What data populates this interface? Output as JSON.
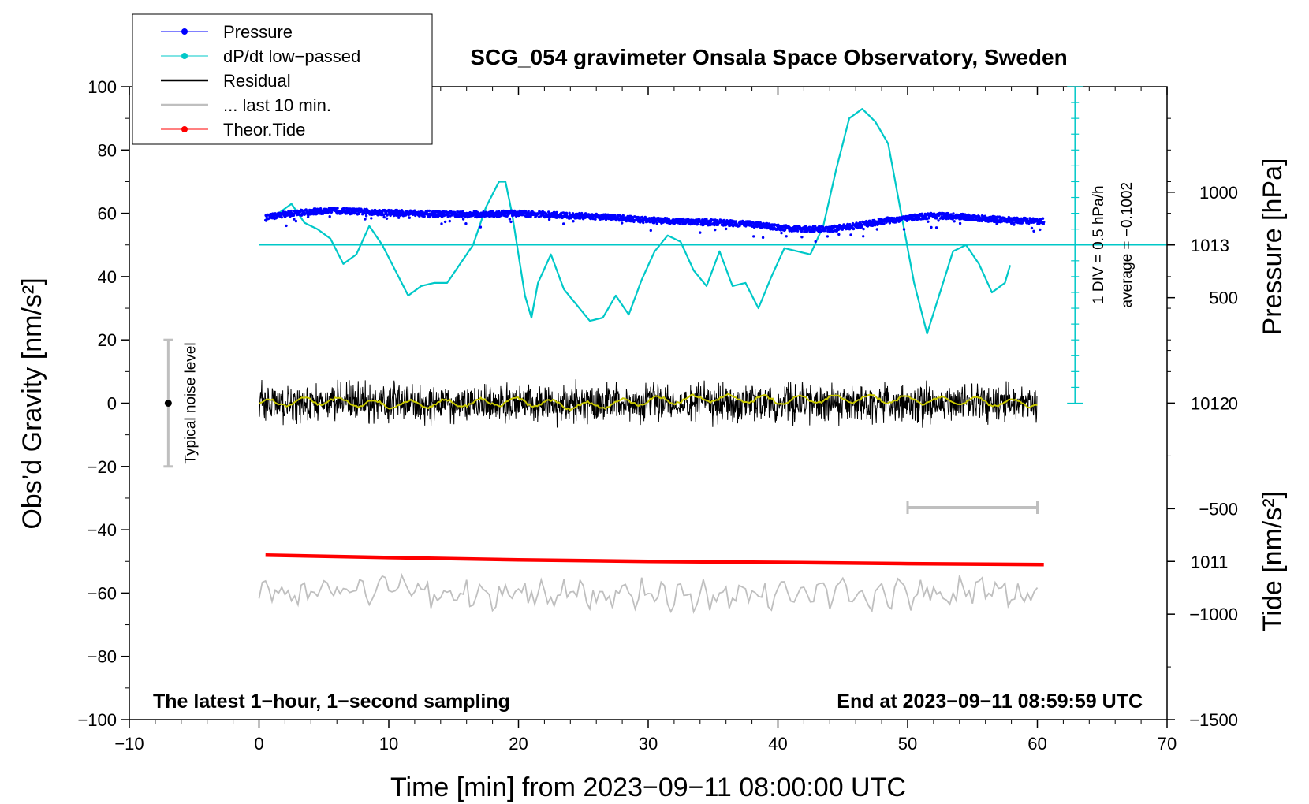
{
  "chart_data": {
    "type": "line",
    "title": "SCG_054 gravimeter Onsala Space Observatory, Sweden",
    "xlabel": "Time [min] from 2023−09−11 08:00:00 UTC",
    "ylabel": "Obs’d Gravity [nm/s²]",
    "xlim": [
      -10,
      70
    ],
    "ylim": [
      -100,
      100
    ],
    "x_ticks": [
      -10,
      0,
      10,
      20,
      30,
      40,
      50,
      60,
      70
    ],
    "x_tick_labels": [
      "−10",
      "0",
      "10",
      "20",
      "30",
      "40",
      "50",
      "60",
      "70"
    ],
    "y_ticks": [
      -100,
      -80,
      -60,
      -40,
      -20,
      0,
      20,
      40,
      60,
      80,
      100
    ],
    "y_tick_labels": [
      "−100",
      "−80",
      "−60",
      "−40",
      "−20",
      "0",
      "20",
      "40",
      "60",
      "80",
      "100"
    ],
    "pressure_axis": {
      "label": "Pressure [hPa]",
      "ticks": [
        1011,
        1012,
        1013
      ],
      "tick_labels": [
        "1011",
        "1012",
        "1013"
      ],
      "range": [
        1010.0,
        1014.0
      ]
    },
    "tide_axis": {
      "label": "Tide [nm/s²]",
      "ticks": [
        -1500,
        -1000,
        -500,
        0,
        500,
        1000
      ],
      "tick_labels": [
        "−1500",
        "−1000",
        "−500",
        "0",
        "500",
        "1000"
      ],
      "range": [
        -1500,
        1500
      ]
    },
    "dpdt_scale": {
      "div_label": "1 DIV = 0.5 hPa/h",
      "average_label": "average = −0.1002",
      "zero_level": 50,
      "range_y": [
        0,
        100
      ],
      "div_step": 5
    },
    "noise_bar": {
      "x": -7,
      "center": 0,
      "low": -20,
      "high": 20,
      "label": "Typical noise level"
    },
    "last10_bar": {
      "x_start": 50,
      "x_end": 60,
      "y": -33
    },
    "series": [
      {
        "name": "Pressure",
        "color": "#0000ff",
        "style": "dots",
        "x": [
          0.5,
          2,
          4,
          6,
          8,
          10,
          12,
          14,
          16,
          18,
          20,
          22,
          24,
          26,
          28,
          30,
          32,
          34,
          36,
          38,
          40,
          42,
          44,
          46,
          48,
          50,
          52,
          54,
          56,
          58,
          60.5
        ],
        "values": [
          58.5,
          59.8,
          60.5,
          60.8,
          60.5,
          60.2,
          60,
          59.8,
          59.6,
          59.8,
          60,
          59.6,
          59.2,
          59,
          58.5,
          57.8,
          57.5,
          57.2,
          57,
          56.5,
          55.5,
          55,
          55,
          56,
          57.5,
          58.5,
          59.3,
          59,
          58.3,
          57.8,
          57.5
        ]
      },
      {
        "name": "dP/dt low−passed",
        "color": "#00c8c8",
        "style": "line",
        "x": [
          0.5,
          1.5,
          2.5,
          3.5,
          4.5,
          5.5,
          6.5,
          7.5,
          8.5,
          9.5,
          10.5,
          11.5,
          12.5,
          13.5,
          14.5,
          15.5,
          16.5,
          17.5,
          18.5,
          19,
          19.5,
          20.5,
          21,
          21.5,
          22.5,
          23.5,
          24.5,
          25.5,
          26.5,
          27.5,
          28.5,
          29.5,
          30.5,
          31.5,
          32.5,
          33.5,
          34.5,
          35.5,
          36.5,
          37.5,
          38.5,
          39.5,
          40.5,
          41.5,
          42.5,
          43.5,
          44.5,
          45.5,
          46.5,
          47.5,
          48.5,
          49.5,
          50.5,
          51.5,
          52.5,
          53.5,
          54.5,
          55.5,
          56.5,
          57.5,
          58
        ],
        "values": [
          58,
          60,
          63,
          57,
          55,
          52,
          44,
          47,
          56,
          50,
          42,
          34,
          37,
          38,
          38,
          44,
          50,
          62,
          70,
          70,
          60,
          34,
          27,
          38,
          47,
          36,
          31,
          26,
          27,
          34,
          28,
          39,
          48,
          53,
          51,
          42,
          37,
          48,
          37,
          38,
          30,
          40,
          49,
          48,
          47,
          56,
          74,
          90,
          93,
          89,
          82,
          60,
          38,
          22,
          35,
          48,
          50,
          44,
          35,
          38,
          45
        ]
      },
      {
        "name": "Residual",
        "color": "#000000",
        "style": "noise",
        "x_range": [
          0,
          60
        ],
        "center": 0,
        "amplitude_max": 9
      },
      {
        "name": "... last 10 min.",
        "color": "#bfbfbf",
        "style": "line",
        "x": [
          0,
          5,
          10,
          15,
          20,
          25,
          30,
          35,
          40,
          45,
          50,
          55,
          60
        ],
        "values": [
          -60,
          -60,
          -60,
          -60,
          -60,
          -60,
          -61,
          -61,
          -60,
          -60,
          -60,
          -60,
          -60
        ],
        "fluctuation": [
          -70,
          -54
        ]
      },
      {
        "name": "Theor.Tide",
        "color": "#ff0000",
        "style": "thick-line",
        "x": [
          0.5,
          10,
          20,
          30,
          40,
          50,
          60.5
        ],
        "values": [
          -48,
          -48.8,
          -49.5,
          -50,
          -50.3,
          -50.7,
          -51
        ]
      },
      {
        "name": "Residual smoothed",
        "color": "#c8c800",
        "style": "line",
        "x": [
          0,
          5,
          10,
          15,
          20,
          25,
          30,
          35,
          40,
          45,
          50,
          55,
          60
        ],
        "values": [
          0,
          0.8,
          -0.5,
          0,
          0.5,
          -1,
          0.8,
          1.5,
          1,
          1.5,
          1,
          0.5,
          0
        ]
      }
    ],
    "legend": {
      "position": "top-left",
      "entries": [
        {
          "label": "Pressure",
          "color": "#0000ff",
          "marker": "dot"
        },
        {
          "label": "dP/dt low−passed",
          "color": "#00c8c8",
          "marker": "dot"
        },
        {
          "label": "Residual",
          "color": "#000000",
          "marker": "line"
        },
        {
          "label": "... last 10 min.",
          "color": "#bfbfbf",
          "marker": "line"
        },
        {
          "label": "Theor.Tide",
          "color": "#ff0000",
          "marker": "dot"
        }
      ]
    },
    "annotations": {
      "bottom_left": "The latest 1−hour, 1−second sampling",
      "bottom_right": "End at 2023−09−11 08:59:59 UTC"
    }
  }
}
